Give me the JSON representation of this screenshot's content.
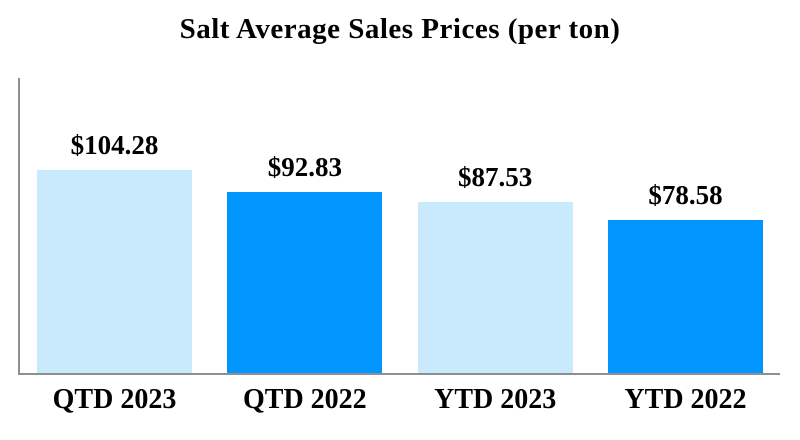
{
  "colors": {
    "light": "#c9eafc",
    "dark": "#0095ff",
    "axis": "#8f8f8f",
    "text": "#000000",
    "background": "#ffffff"
  },
  "chart_data": {
    "type": "bar",
    "title": "Salt Average Sales Prices (per ton)",
    "categories": [
      "QTD 2023",
      "QTD 2022",
      "YTD 2023",
      "YTD 2022"
    ],
    "values": [
      104.28,
      92.83,
      87.53,
      78.58
    ],
    "value_labels": [
      "$104.28",
      "$92.83",
      "$87.53",
      "$78.58"
    ],
    "series_colors": [
      "light",
      "dark",
      "light",
      "dark"
    ],
    "xlabel": "",
    "ylabel": "",
    "ylim": [
      0,
      150
    ],
    "grid": false,
    "legend": false,
    "axis_ticks_visible": false
  }
}
